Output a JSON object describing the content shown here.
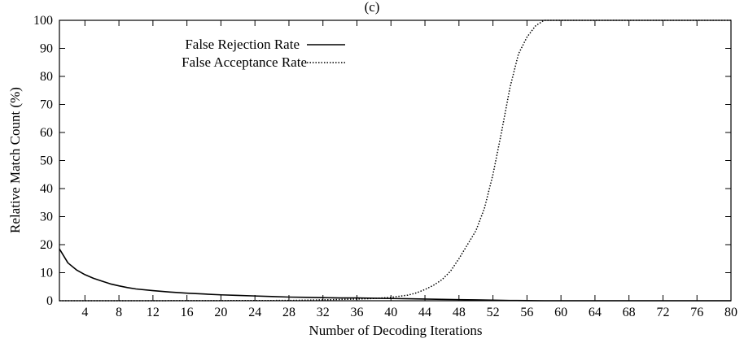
{
  "chart_data": {
    "type": "line",
    "title": "(c)",
    "xlabel": "Number of Decoding Iterations",
    "ylabel": "Relative Match Count (%)",
    "xlim": [
      1,
      80
    ],
    "ylim": [
      0,
      100
    ],
    "grid": false,
    "legend": "top-left",
    "x_ticks": [
      4,
      8,
      12,
      16,
      20,
      24,
      28,
      32,
      36,
      40,
      44,
      48,
      52,
      56,
      60,
      64,
      68,
      72,
      76,
      80
    ],
    "y_ticks": [
      0,
      10,
      20,
      30,
      40,
      50,
      60,
      70,
      80,
      90,
      100
    ],
    "series": [
      {
        "name": "False Rejection Rate",
        "style": "solid",
        "color": "#000000",
        "points": [
          [
            1,
            18.5
          ],
          [
            2,
            13.5
          ],
          [
            3,
            11
          ],
          [
            4,
            9.3
          ],
          [
            5,
            8
          ],
          [
            6,
            7
          ],
          [
            7,
            6
          ],
          [
            8,
            5.3
          ],
          [
            9,
            4.7
          ],
          [
            10,
            4.2
          ],
          [
            12,
            3.6
          ],
          [
            14,
            3.1
          ],
          [
            16,
            2.7
          ],
          [
            18,
            2.4
          ],
          [
            20,
            2.1
          ],
          [
            22,
            1.9
          ],
          [
            24,
            1.7
          ],
          [
            26,
            1.5
          ],
          [
            28,
            1.3
          ],
          [
            30,
            1.2
          ],
          [
            32,
            1.1
          ],
          [
            34,
            1.0
          ],
          [
            36,
            1.0
          ],
          [
            38,
            0.9
          ],
          [
            40,
            0.8
          ],
          [
            42,
            0.7
          ],
          [
            44,
            0.6
          ],
          [
            46,
            0.5
          ],
          [
            48,
            0.4
          ],
          [
            50,
            0.3
          ],
          [
            52,
            0.2
          ],
          [
            54,
            0.1
          ],
          [
            56,
            0.05
          ],
          [
            58,
            0
          ],
          [
            60,
            0
          ],
          [
            70,
            0
          ],
          [
            80,
            0
          ]
        ]
      },
      {
        "name": "False Acceptance Rate",
        "style": "dotted",
        "color": "#000000",
        "points": [
          [
            1,
            0
          ],
          [
            10,
            0
          ],
          [
            20,
            0.05
          ],
          [
            28,
            0.1
          ],
          [
            32,
            0.3
          ],
          [
            36,
            0.6
          ],
          [
            38,
            0.8
          ],
          [
            40,
            1.2
          ],
          [
            42,
            2
          ],
          [
            43,
            2.8
          ],
          [
            44,
            4
          ],
          [
            45,
            5.5
          ],
          [
            46,
            7.5
          ],
          [
            47,
            10.5
          ],
          [
            48,
            15
          ],
          [
            49,
            20
          ],
          [
            50,
            25
          ],
          [
            51,
            33
          ],
          [
            52,
            45
          ],
          [
            53,
            60
          ],
          [
            54,
            76
          ],
          [
            55,
            88
          ],
          [
            56,
            94
          ],
          [
            57,
            98
          ],
          [
            58,
            100
          ],
          [
            60,
            100
          ],
          [
            70,
            100
          ],
          [
            80,
            100
          ]
        ]
      }
    ]
  }
}
